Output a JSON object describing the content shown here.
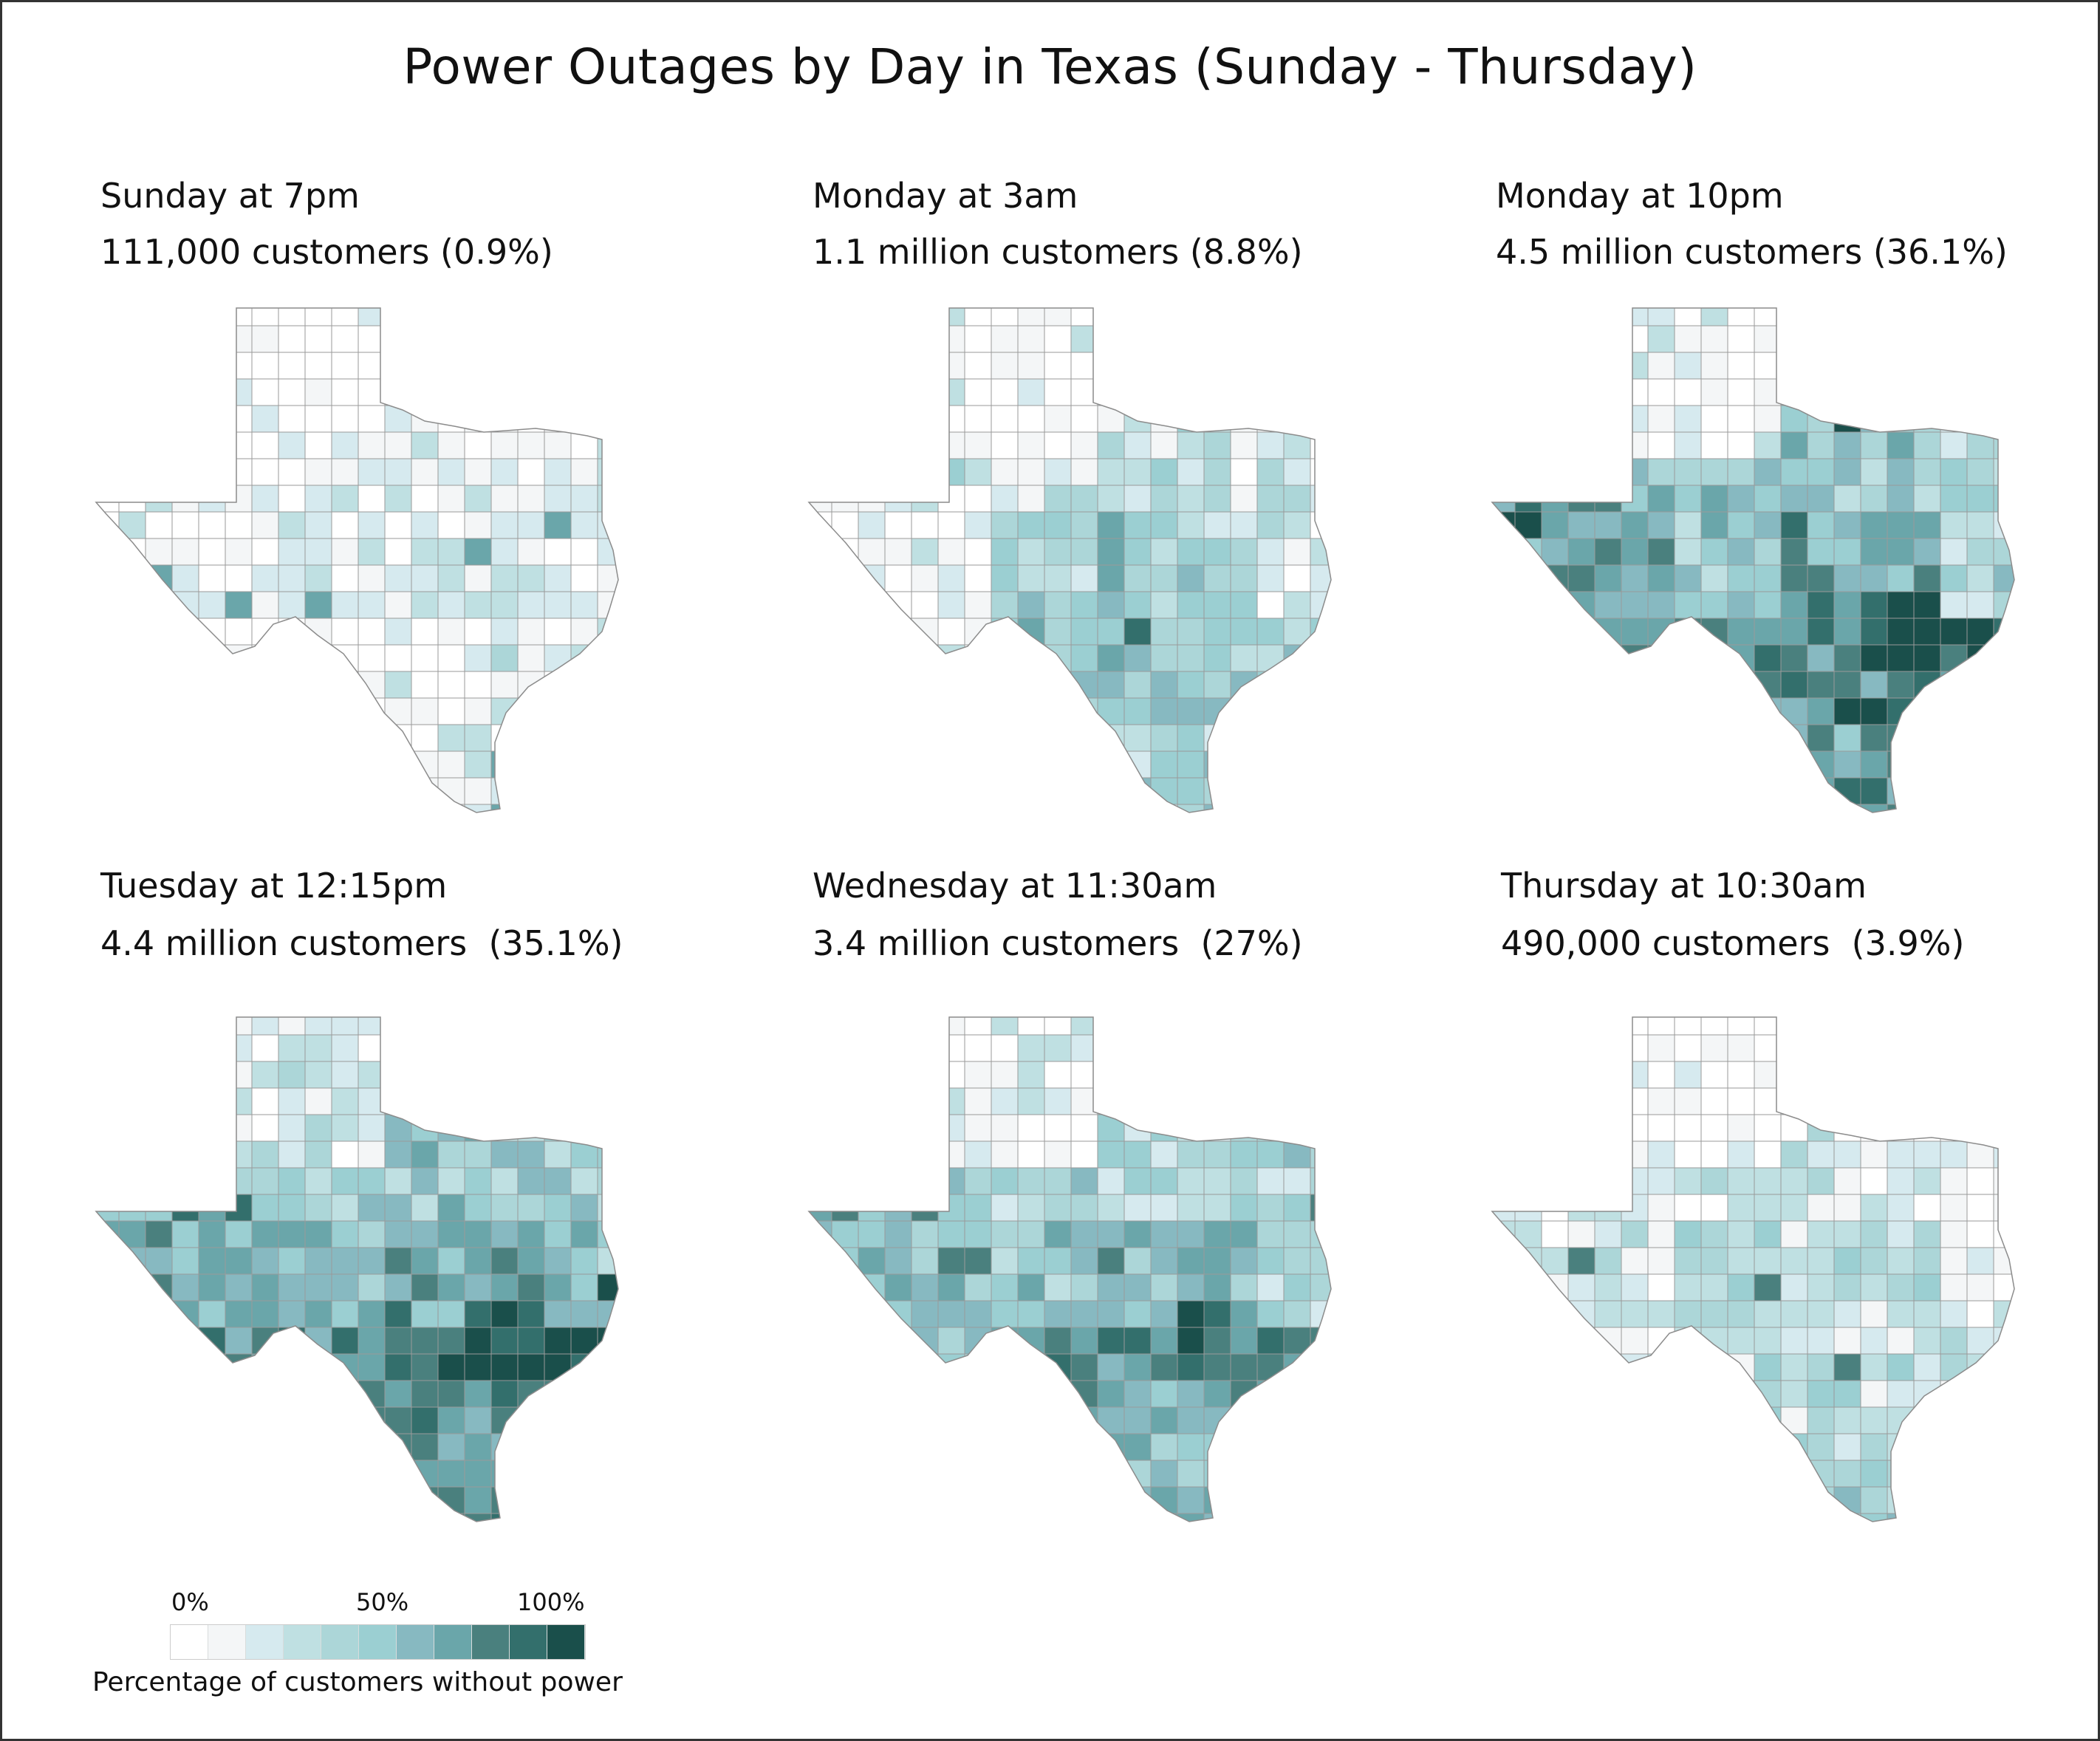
{
  "title": "Power Outages by Day in Texas (Sunday - Thursday)",
  "palette": [
    "#ffffff",
    "#f4f6f7",
    "#d6eaef",
    "#bfe0e2",
    "#acd6d8",
    "#9bcfd2",
    "#87b9c1",
    "#6aa6aa",
    "#4a807e",
    "#336f6c",
    "#1a4f4b"
  ],
  "border_color": "#9a9a9a",
  "panels": [
    {
      "time": "Sunday at 7pm",
      "summary": "111,000 customers (0.9%)",
      "customers": 111000,
      "percent": 0.9,
      "regions": {
        "panhandle": 0,
        "north_central": 1,
        "far_west": 1,
        "west_central": 2,
        "central": 2,
        "east": 1,
        "southeast": 1,
        "houston": 2,
        "south": 1,
        "valley": 1,
        "hot_spots": 7
      }
    },
    {
      "time": "Monday at 3am",
      "summary": "1.1 million customers (8.8%)",
      "customers": 1100000,
      "percent": 8.8,
      "regions": {
        "panhandle": 1,
        "north_central": 3,
        "far_west": 1,
        "west_central": 4,
        "central": 4,
        "east": 2,
        "southeast": 5,
        "houston": 5,
        "south": 6,
        "valley": 4,
        "hot_spots": 9
      }
    },
    {
      "time": "Monday at 10pm",
      "summary": "4.5 million customers (36.1%)",
      "customers": 4500000,
      "percent": 36.1,
      "regions": {
        "panhandle": 1,
        "north_central": 5,
        "far_west": 7,
        "west_central": 5,
        "central": 7,
        "east": 4,
        "southeast": 8,
        "houston": 10,
        "south": 8,
        "valley": 7,
        "hot_spots": 10
      }
    },
    {
      "time": "Tuesday at 12:15pm",
      "summary": "4.4 million customers  (35.1%)",
      "customers": 4400000,
      "percent": 35.1,
      "regions": {
        "panhandle": 2,
        "north_central": 5,
        "far_west": 7,
        "west_central": 6,
        "central": 7,
        "east": 5,
        "southeast": 8,
        "houston": 10,
        "south": 8,
        "valley": 7,
        "hot_spots": 10
      }
    },
    {
      "time": "Wednesday at 11:30am",
      "summary": "3.4 million customers  (27%)",
      "customers": 3400000,
      "percent": 27,
      "regions": {
        "panhandle": 1,
        "north_central": 4,
        "far_west": 6,
        "west_central": 5,
        "central": 6,
        "east": 4,
        "southeast": 7,
        "houston": 8,
        "south": 7,
        "valley": 6,
        "hot_spots": 8
      }
    },
    {
      "time": "Thursday at 10:30am",
      "summary": "490,000 customers  (3.9%)",
      "customers": 490000,
      "percent": 3.9,
      "regions": {
        "panhandle": 0,
        "north_central": 2,
        "far_west": 2,
        "west_central": 3,
        "central": 4,
        "east": 1,
        "southeast": 3,
        "houston": 3,
        "south": 3,
        "valley": 4,
        "hot_spots": 8
      }
    }
  ],
  "legend": {
    "ticks": [
      "0%",
      "50%",
      "100%"
    ],
    "caption": "Percentage of customers without power"
  }
}
